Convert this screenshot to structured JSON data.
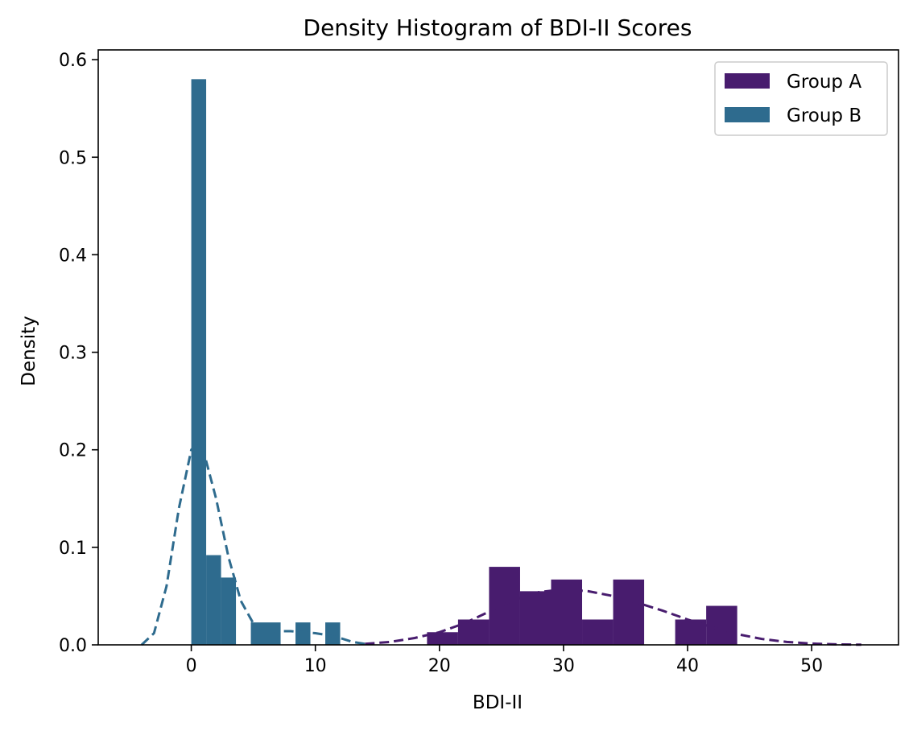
{
  "chart_data": {
    "type": "bar",
    "title": "Density Histogram of BDI-II Scores",
    "xlabel": "BDI-II",
    "ylabel": "Density",
    "xlim": [
      -7.5,
      57
    ],
    "ylim": [
      0,
      0.61
    ],
    "xticks": [
      0,
      10,
      20,
      30,
      40,
      50
    ],
    "yticks": [
      0.0,
      0.1,
      0.2,
      0.3,
      0.4,
      0.5,
      0.6
    ],
    "grid": false,
    "legend_position": "top-right",
    "series": [
      {
        "name": "Group A",
        "color": "#481c6e",
        "bins": [
          {
            "x0": 19.0,
            "x1": 21.5,
            "value": 0.013
          },
          {
            "x0": 21.5,
            "x1": 24.0,
            "value": 0.026
          },
          {
            "x0": 24.0,
            "x1": 26.5,
            "value": 0.08
          },
          {
            "x0": 26.5,
            "x1": 29.0,
            "value": 0.055
          },
          {
            "x0": 29.0,
            "x1": 31.5,
            "value": 0.067
          },
          {
            "x0": 31.5,
            "x1": 34.0,
            "value": 0.026
          },
          {
            "x0": 34.0,
            "x1": 36.5,
            "value": 0.067
          },
          {
            "x0": 39.0,
            "x1": 41.5,
            "value": 0.026
          },
          {
            "x0": 41.5,
            "x1": 44.0,
            "value": 0.04
          }
        ],
        "density_curve": {
          "style": "dashed",
          "x": [
            14,
            16,
            18,
            20,
            22,
            24,
            26,
            28,
            30,
            32,
            34,
            36,
            38,
            40,
            42,
            44,
            46,
            48,
            50,
            52,
            54
          ],
          "y": [
            0.001,
            0.003,
            0.007,
            0.013,
            0.022,
            0.034,
            0.046,
            0.054,
            0.057,
            0.055,
            0.05,
            0.043,
            0.035,
            0.026,
            0.018,
            0.011,
            0.006,
            0.003,
            0.0013,
            0.0005,
            0.0002
          ]
        }
      },
      {
        "name": "Group B",
        "color": "#2e6b8e",
        "bins": [
          {
            "x0": 0.0,
            "x1": 1.2,
            "value": 0.58
          },
          {
            "x0": 1.2,
            "x1": 2.4,
            "value": 0.092
          },
          {
            "x0": 2.4,
            "x1": 3.6,
            "value": 0.069
          },
          {
            "x0": 4.8,
            "x1": 7.2,
            "value": 0.023
          },
          {
            "x0": 8.4,
            "x1": 9.6,
            "value": 0.023
          },
          {
            "x0": 10.8,
            "x1": 12.0,
            "value": 0.023
          }
        ],
        "density_curve": {
          "style": "dashed",
          "x": [
            -4.0,
            -3.0,
            -2.0,
            -1.0,
            0.0,
            0.5,
            1.0,
            2.0,
            3.0,
            4.0,
            5.0,
            6.0,
            7.0,
            8.0,
            9.0,
            10.0,
            11.0,
            12.0,
            13.0,
            14.0
          ],
          "y": [
            0.0,
            0.012,
            0.06,
            0.14,
            0.2,
            0.206,
            0.198,
            0.15,
            0.09,
            0.045,
            0.022,
            0.015,
            0.014,
            0.014,
            0.013,
            0.012,
            0.01,
            0.007,
            0.003,
            0.001
          ]
        }
      }
    ]
  }
}
